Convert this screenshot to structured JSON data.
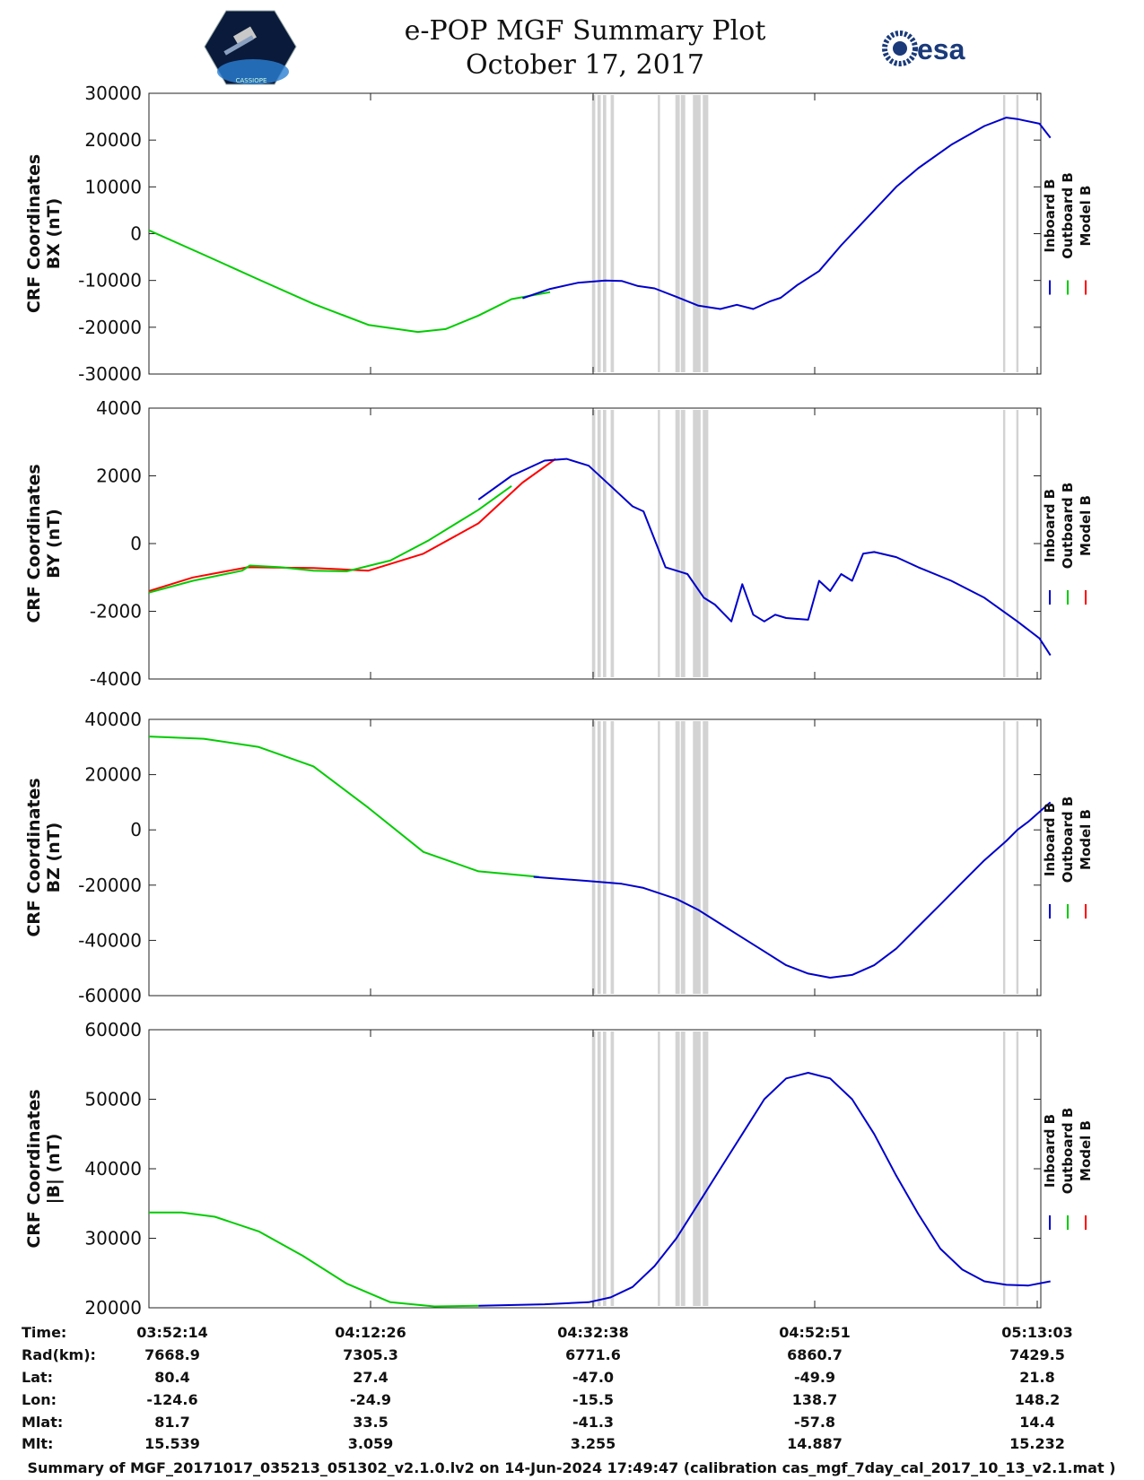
{
  "header": {
    "title_line1": "e-POP MGF Summary Plot",
    "title_line2": "October 17, 2017",
    "left_logo_text": "CASSIOPE",
    "right_logo_text": "esa"
  },
  "colors": {
    "inboard": "#0000cc",
    "outboard": "#00cc00",
    "model": "#ff0000",
    "flag": "#d3d3d3"
  },
  "legend": {
    "inboard": "Inboard B",
    "outboard": "Outboard B",
    "model": "Model B"
  },
  "chart_data": [
    {
      "type": "line",
      "ylabel_line1": "CRF Coordinates",
      "ylabel_line2": "BX (nT)",
      "ylim": [
        -30000,
        30000
      ],
      "yticks": [
        -30000,
        -20000,
        -10000,
        0,
        10000,
        20000,
        30000
      ],
      "ytick_labels": [
        "-30000",
        "-20000",
        "-10000",
        "0",
        "10000",
        "20000",
        "30000"
      ],
      "xlim_min": [
        0,
        82
      ],
      "series": [
        {
          "name": "Outboard B",
          "color": "outboard",
          "x": [
            0,
            5,
            10,
            15,
            20,
            24.5,
            27,
            30,
            33,
            36.5
          ],
          "y": [
            700,
            -4500,
            -9800,
            -15000,
            -19500,
            -21000,
            -20400,
            -17500,
            -14000,
            -12500
          ]
        },
        {
          "name": "Inboard B",
          "color": "inboard",
          "x": [
            34,
            36.5,
            39,
            41.5,
            43,
            44.5,
            46,
            48,
            50,
            52,
            53.5,
            55,
            56.5,
            57.5,
            59,
            61,
            63,
            66,
            68,
            70,
            73,
            76,
            78,
            79,
            81,
            82
          ],
          "y": [
            -13800,
            -11800,
            -10500,
            -10000,
            -10100,
            -11200,
            -11700,
            -13500,
            -15400,
            -16100,
            -15200,
            -16100,
            -14500,
            -13700,
            -11000,
            -8000,
            -2500,
            5000,
            10000,
            14000,
            19000,
            23000,
            24800,
            24500,
            23500,
            20500
          ]
        },
        {
          "name": "Model B",
          "color": "model",
          "x": [],
          "y": []
        }
      ]
    },
    {
      "type": "line",
      "ylabel_line1": "CRF Coordinates",
      "ylabel_line2": "BY (nT)",
      "ylim": [
        -4000,
        4000
      ],
      "yticks": [
        -4000,
        -2000,
        0,
        2000,
        4000
      ],
      "ytick_labels": [
        "-4000",
        "-2000",
        "0",
        "2000",
        "4000"
      ],
      "xlim_min": [
        0,
        82
      ],
      "series": [
        {
          "name": "Model B",
          "color": "model",
          "x": [
            0,
            4,
            9,
            15,
            20,
            25,
            30,
            34,
            37
          ],
          "y": [
            -1400,
            -1000,
            -700,
            -720,
            -800,
            -300,
            600,
            1800,
            2500
          ]
        },
        {
          "name": "Outboard B",
          "color": "outboard",
          "x": [
            0,
            4,
            8.5,
            9.2,
            12,
            15,
            18,
            22,
            25.5,
            30,
            33
          ],
          "y": [
            -1450,
            -1100,
            -800,
            -650,
            -700,
            -800,
            -820,
            -500,
            100,
            1000,
            1700
          ]
        },
        {
          "name": "Inboard B",
          "color": "inboard",
          "x": [
            30,
            33,
            36,
            38,
            40,
            42,
            44,
            45,
            47,
            49,
            50.5,
            51.5,
            53,
            54,
            55,
            56,
            57,
            58,
            60,
            61,
            62,
            63,
            64,
            65,
            66,
            68,
            70,
            73,
            76,
            79,
            81,
            82
          ],
          "y": [
            1300,
            2000,
            2450,
            2500,
            2300,
            1700,
            1100,
            950,
            -700,
            -900,
            -1600,
            -1800,
            -2300,
            -1200,
            -2100,
            -2300,
            -2100,
            -2200,
            -2250,
            -1100,
            -1400,
            -900,
            -1100,
            -300,
            -250,
            -400,
            -700,
            -1100,
            -1600,
            -2300,
            -2800,
            -3300
          ]
        }
      ]
    },
    {
      "type": "line",
      "ylabel_line1": "CRF Coordinates",
      "ylabel_line2": "BZ (nT)",
      "ylim": [
        -60000,
        40000
      ],
      "yticks": [
        -60000,
        -40000,
        -20000,
        0,
        20000,
        40000
      ],
      "ytick_labels": [
        "-60000",
        "-40000",
        "-20000",
        "0",
        "20000",
        "40000"
      ],
      "xlim_min": [
        0,
        82
      ],
      "series": [
        {
          "name": "Outboard B",
          "color": "outboard",
          "x": [
            0,
            5,
            10,
            15,
            20,
            25,
            30,
            35.5
          ],
          "y": [
            33800,
            33000,
            30000,
            23000,
            8000,
            -8000,
            -15000,
            -17000
          ]
        },
        {
          "name": "Inboard B",
          "color": "inboard",
          "x": [
            35,
            40,
            43,
            45,
            48,
            50,
            52,
            54,
            56,
            58,
            60,
            62,
            64,
            66,
            68,
            70,
            72,
            74,
            76,
            78,
            79,
            80,
            82
          ],
          "y": [
            -17000,
            -18500,
            -19500,
            -21000,
            -25000,
            -29000,
            -34000,
            -39000,
            -44000,
            -49000,
            -52000,
            -53500,
            -52500,
            -49000,
            -43000,
            -35000,
            -27000,
            -19000,
            -11000,
            -4000,
            0,
            3000,
            10000
          ]
        },
        {
          "name": "Model B",
          "color": "model",
          "x": [],
          "y": []
        }
      ]
    },
    {
      "type": "line",
      "ylabel_line1": "CRF Coordinates",
      "ylabel_line2": "|B| (nT)",
      "ylim": [
        20000,
        60000
      ],
      "yticks": [
        20000,
        30000,
        40000,
        50000,
        60000
      ],
      "ytick_labels": [
        "20000",
        "30000",
        "40000",
        "50000",
        "60000"
      ],
      "xlim_min": [
        0,
        82
      ],
      "series": [
        {
          "name": "Outboard B",
          "color": "outboard",
          "x": [
            0,
            3,
            6,
            10,
            14,
            18,
            22,
            26,
            30
          ],
          "y": [
            33700,
            33700,
            33100,
            31000,
            27500,
            23500,
            20800,
            20200,
            20300
          ]
        },
        {
          "name": "Inboard B",
          "color": "inboard",
          "x": [
            30,
            36,
            40,
            42,
            44,
            46,
            48,
            50,
            52,
            54,
            56,
            58,
            60,
            62,
            64,
            66,
            68,
            70,
            72,
            74,
            76,
            78,
            80,
            82
          ],
          "y": [
            20300,
            20500,
            20800,
            21500,
            23000,
            26000,
            30000,
            35000,
            40000,
            45000,
            50000,
            53000,
            53800,
            53000,
            50000,
            45000,
            39000,
            33500,
            28500,
            25500,
            23800,
            23300,
            23200,
            23800
          ]
        },
        {
          "name": "Model B",
          "color": "model",
          "x": [],
          "y": []
        }
      ]
    }
  ],
  "flag_bands_min": [
    [
      40.3,
      40.6
    ],
    [
      40.8,
      41.1
    ],
    [
      41.3,
      41.6
    ],
    [
      42.0,
      42.3
    ],
    [
      46.3,
      46.5
    ],
    [
      47.9,
      48.3
    ],
    [
      48.4,
      48.8
    ],
    [
      49.5,
      50.2
    ],
    [
      50.4,
      50.9
    ],
    [
      77.7,
      77.9
    ],
    [
      78.9,
      79.1
    ]
  ],
  "time_axis": {
    "tick_minutes": [
      0,
      20.2,
      40.4,
      60.6,
      80.8
    ]
  },
  "orbit_table": {
    "row_labels": [
      "Time:",
      "Rad(km):",
      "Lat:",
      "Lon:",
      "Mlat:",
      "Mlt:"
    ],
    "columns": [
      [
        "03:52:14",
        "7668.9",
        "80.4",
        "-124.6",
        "81.7",
        "15.539"
      ],
      [
        "04:12:26",
        "7305.3",
        "27.4",
        "-24.9",
        "33.5",
        "3.059"
      ],
      [
        "04:32:38",
        "6771.6",
        "-47.0",
        "-15.5",
        "-41.3",
        "3.255"
      ],
      [
        "04:52:51",
        "6860.7",
        "-49.9",
        "138.7",
        "-57.8",
        "14.887"
      ],
      [
        "05:13:03",
        "7429.5",
        "21.8",
        "148.2",
        "14.4",
        "15.232"
      ]
    ]
  },
  "footer": "Summary of MGF_20171017_035213_051302_v2.1.0.lv2 on 14-Jun-2024 17:49:47 (calibration cas_mgf_7day_cal_2017_10_13_v2.1.mat )"
}
